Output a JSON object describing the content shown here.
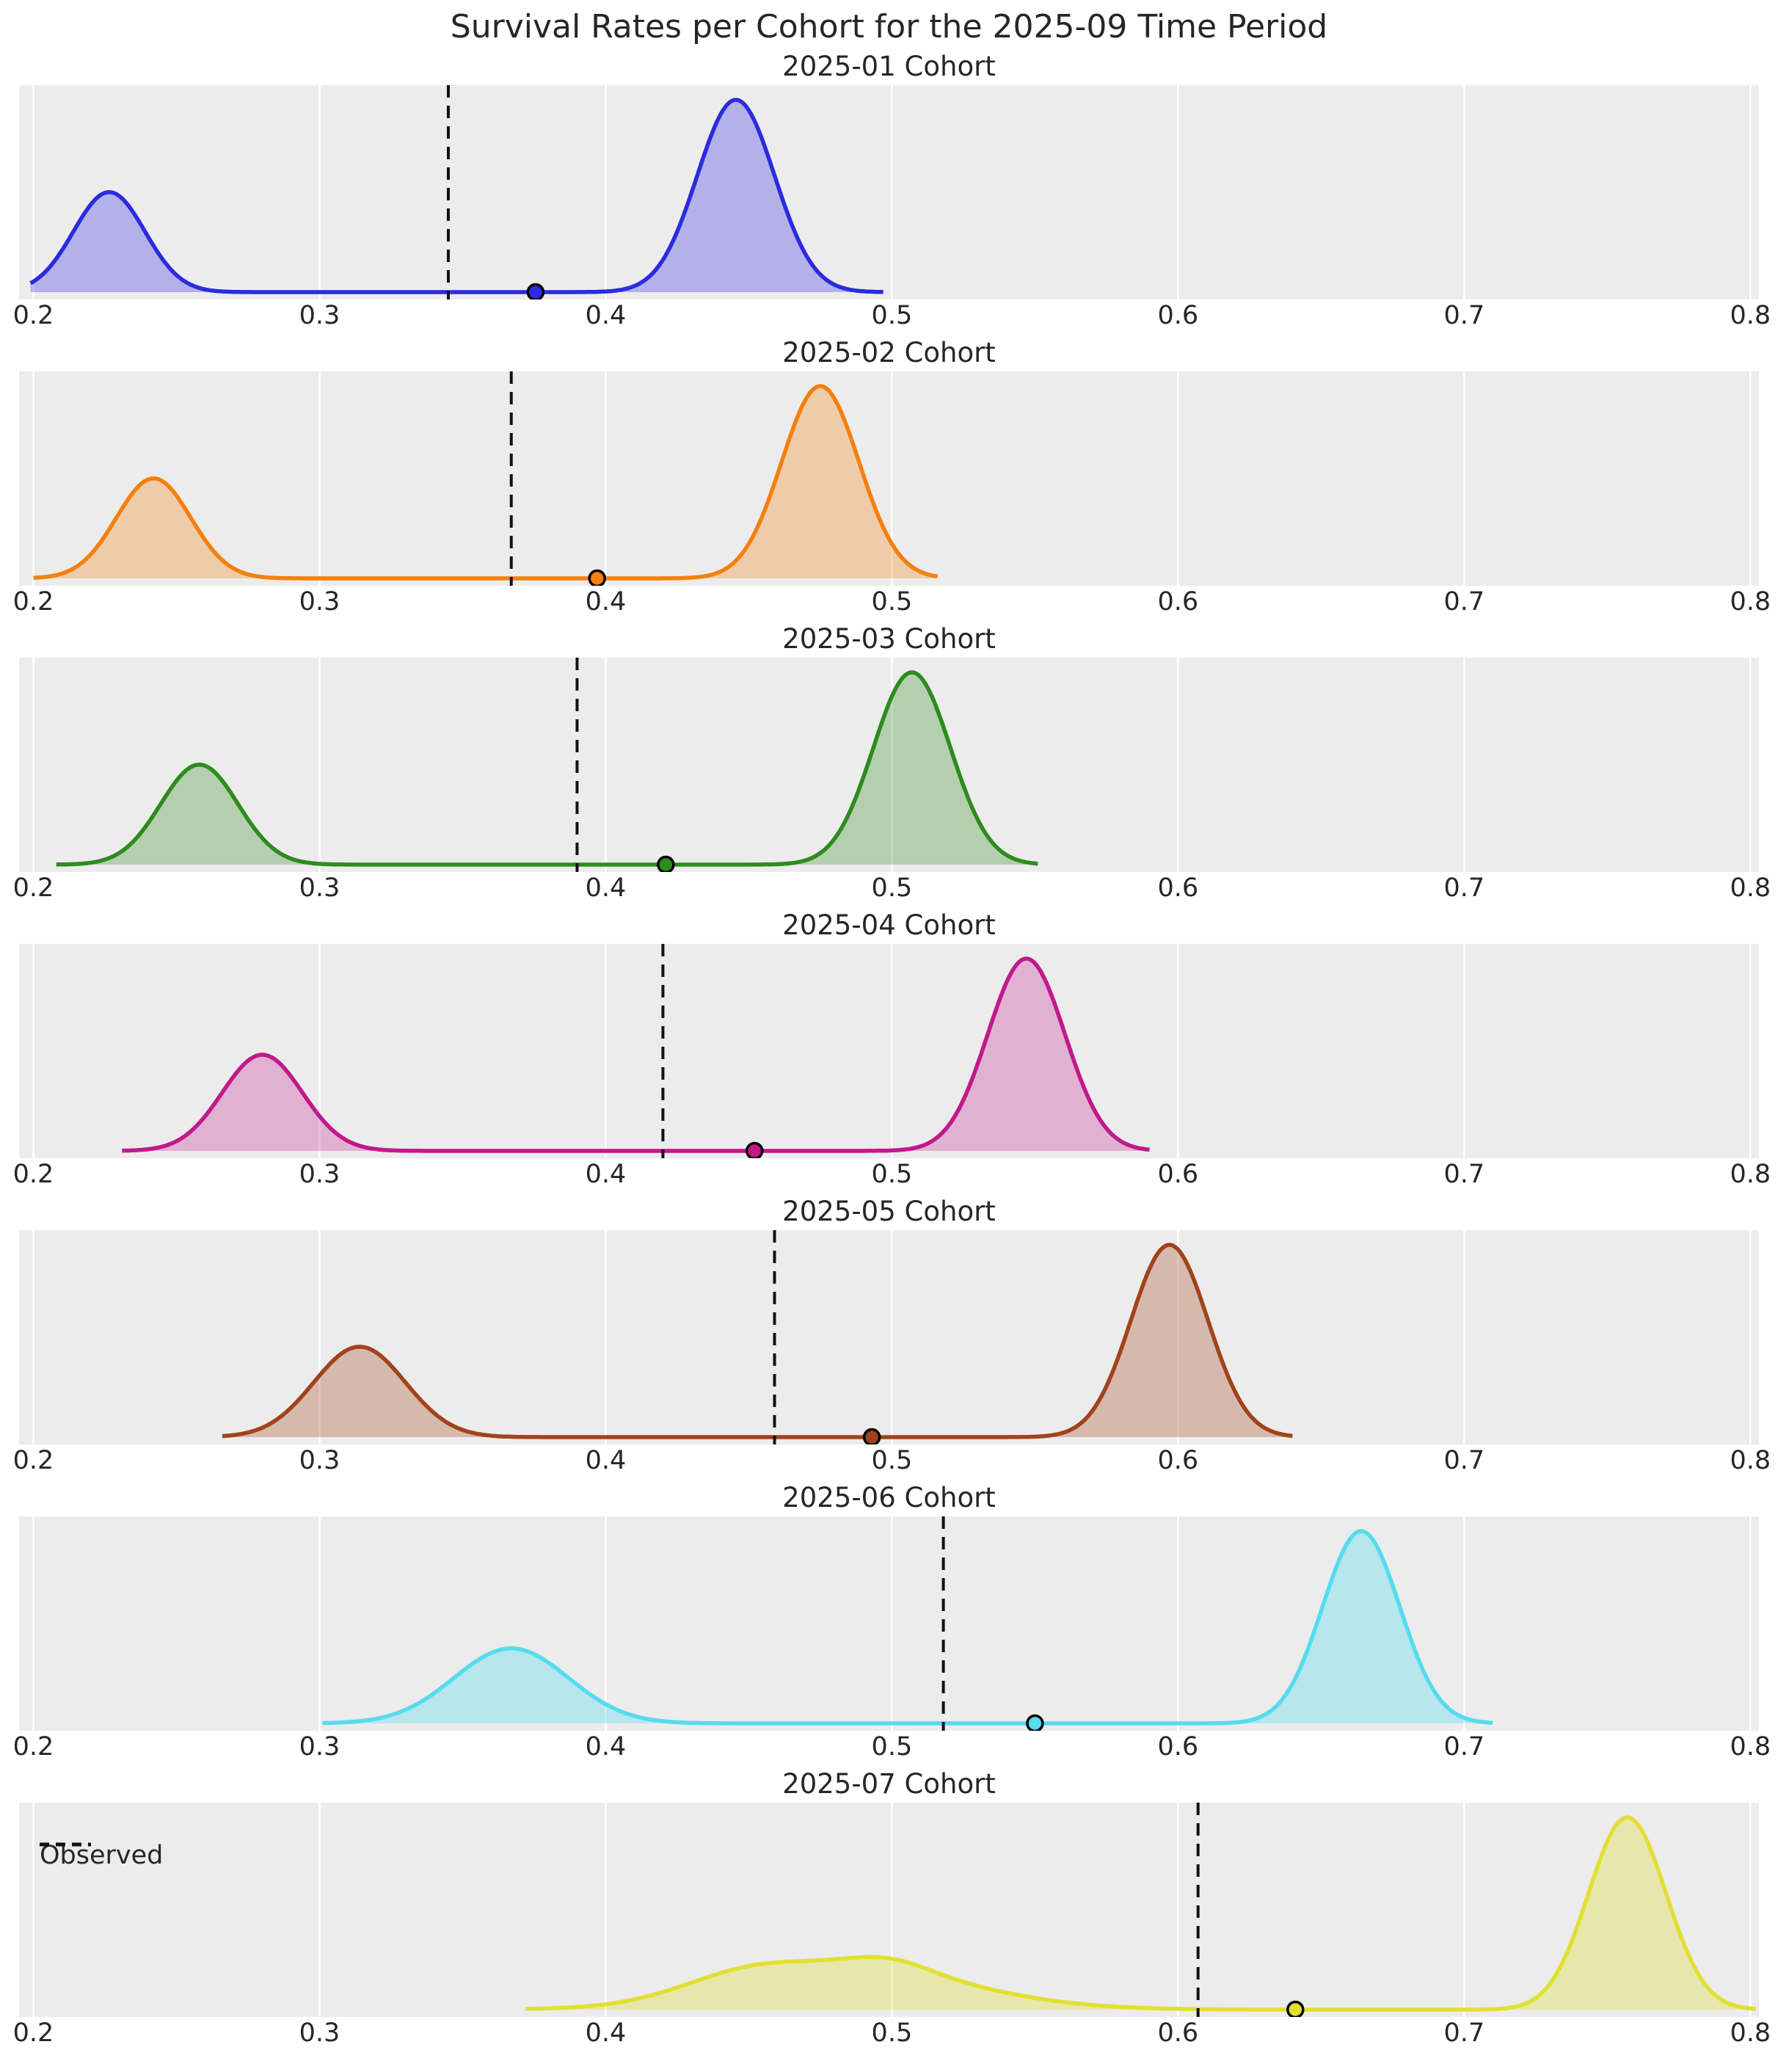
{
  "title": "Survival Rates per Cohort for the 2025-09 Time Period",
  "legend": {
    "label": "Observed"
  },
  "axis": {
    "xlim": [
      0.195,
      0.803
    ],
    "tick_labels": [
      "0.2",
      "0.3",
      "0.4",
      "0.5",
      "0.6",
      "0.7",
      "0.8"
    ],
    "tick_values": [
      0.2,
      0.3,
      0.4,
      0.5,
      0.6,
      0.7,
      0.8
    ],
    "grid": true
  },
  "style": {
    "panel_background": "#ECECEC",
    "grid_color": "#FFFFFF",
    "text_color": "#262626",
    "observed_line_color": "#111111"
  },
  "chart_data": {
    "type": "area",
    "subtype": "kde-ridgeline-grid",
    "note": "Each subplot: bimodal posterior density of survival rate, black dashed vertical line = Observed value, dot marker on baseline.",
    "series": [
      {
        "title": "2025-01 Cohort",
        "color": "#2B2BE0",
        "fill_alpha": 0.3,
        "x_range": [
          0.199,
          0.497
        ],
        "peaks": [
          {
            "center": 0.2265,
            "sd": 0.0125,
            "height": 0.52
          },
          {
            "center": 0.4455,
            "sd": 0.0135,
            "height": 1.0
          }
        ],
        "observed": 0.345,
        "dot": 0.3755
      },
      {
        "title": "2025-02 Cohort",
        "color": "#F5800D",
        "fill_alpha": 0.3,
        "x_range": [
          0.2,
          0.516
        ],
        "peaks": [
          {
            "center": 0.242,
            "sd": 0.013,
            "height": 0.52
          },
          {
            "center": 0.475,
            "sd": 0.0135,
            "height": 1.0
          }
        ],
        "observed": 0.367,
        "dot": 0.397
      },
      {
        "title": "2025-03 Cohort",
        "color": "#2E8B1F",
        "fill_alpha": 0.3,
        "x_range": [
          0.208,
          0.551
        ],
        "peaks": [
          {
            "center": 0.258,
            "sd": 0.0135,
            "height": 0.52
          },
          {
            "center": 0.507,
            "sd": 0.0135,
            "height": 1.0
          }
        ],
        "observed": 0.39,
        "dot": 0.421
      },
      {
        "title": "2025-04 Cohort",
        "color": "#C2188C",
        "fill_alpha": 0.28,
        "x_range": [
          0.231,
          0.59
        ],
        "peaks": [
          {
            "center": 0.28,
            "sd": 0.014,
            "height": 0.5
          },
          {
            "center": 0.547,
            "sd": 0.0135,
            "height": 1.0
          }
        ],
        "observed": 0.42,
        "dot": 0.452
      },
      {
        "title": "2025-05 Cohort",
        "color": "#A0431B",
        "fill_alpha": 0.3,
        "x_range": [
          0.266,
          0.64
        ],
        "peaks": [
          {
            "center": 0.314,
            "sd": 0.016,
            "height": 0.47
          },
          {
            "center": 0.597,
            "sd": 0.0135,
            "height": 1.0
          }
        ],
        "observed": 0.459,
        "dot": 0.493
      },
      {
        "title": "2025-06 Cohort",
        "color": "#55DCEF",
        "fill_alpha": 0.35,
        "x_range": [
          0.301,
          0.71
        ],
        "peaks": [
          {
            "center": 0.367,
            "sd": 0.02,
            "height": 0.39
          },
          {
            "center": 0.664,
            "sd": 0.0135,
            "height": 1.0
          }
        ],
        "observed": 0.518,
        "dot": 0.55
      },
      {
        "title": "2025-07 Cohort",
        "color": "#E2DF33",
        "fill_alpha": 0.35,
        "x_range": [
          0.372,
          0.802
        ],
        "peaks": [
          {
            "center": 0.448,
            "sd": 0.022,
            "height": 0.09
          },
          {
            "center": 0.487,
            "sd": 0.04,
            "height": 0.21
          },
          {
            "center": 0.499,
            "sd": 0.014,
            "height": 0.06
          },
          {
            "center": 0.757,
            "sd": 0.0135,
            "height": 1.0
          }
        ],
        "observed": 0.607,
        "dot": 0.641
      }
    ]
  }
}
